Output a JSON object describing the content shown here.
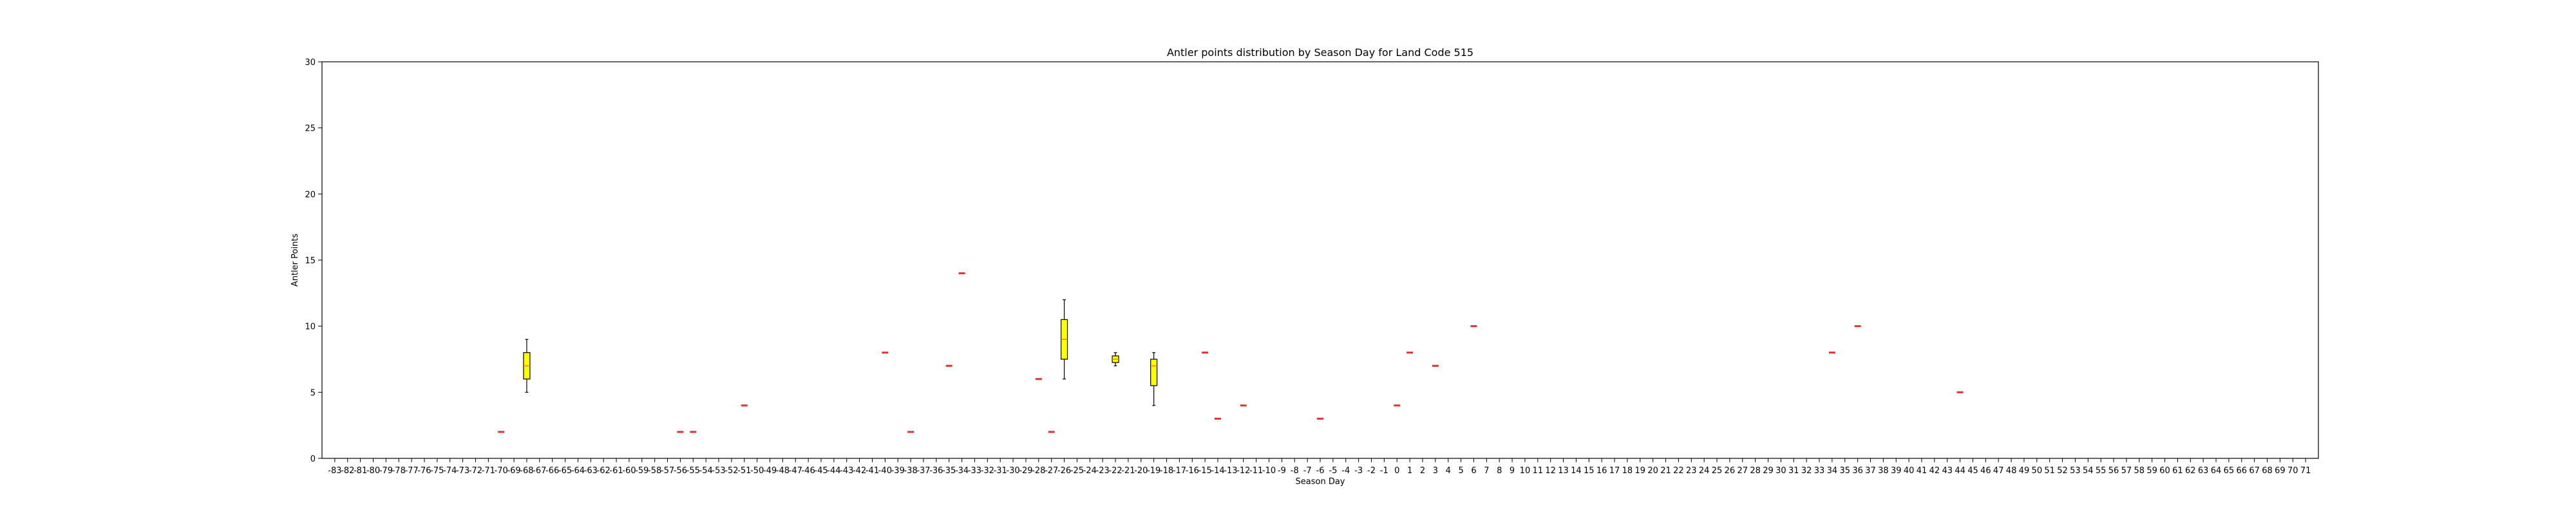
{
  "chart_data": {
    "type": "box",
    "title": "Antler points distribution by Season Day for Land Code 515",
    "xlabel": "Season Day",
    "ylabel": "Antler Points",
    "ylim": [
      0,
      30
    ],
    "yticks": [
      0,
      5,
      10,
      15,
      20,
      25,
      30
    ],
    "xmin": -83,
    "xmax": 71,
    "grid": false,
    "box_color": "#ffff00",
    "median_color": "#ff7f0e",
    "boxes": [
      {
        "x": -68,
        "whislo": 5,
        "q1": 6,
        "med": 7,
        "q3": 8,
        "whishi": 9
      },
      {
        "x": -26,
        "whislo": 6,
        "q1": 7.5,
        "med": 9,
        "q3": 10.5,
        "whishi": 12
      },
      {
        "x": -22,
        "whislo": 7,
        "q1": 7.25,
        "med": 7.5,
        "q3": 7.75,
        "whishi": 8
      },
      {
        "x": -19,
        "whislo": 4,
        "q1": 5.5,
        "med": 7,
        "q3": 7.5,
        "whishi": 8
      }
    ],
    "singles": [
      {
        "x": -70,
        "value": 2
      },
      {
        "x": -56,
        "value": 2
      },
      {
        "x": -55,
        "value": 2
      },
      {
        "x": -51,
        "value": 4
      },
      {
        "x": -40,
        "value": 8
      },
      {
        "x": -38,
        "value": 2
      },
      {
        "x": -35,
        "value": 7
      },
      {
        "x": -34,
        "value": 14
      },
      {
        "x": -28,
        "value": 6
      },
      {
        "x": -27,
        "value": 2
      },
      {
        "x": -15,
        "value": 8
      },
      {
        "x": -14,
        "value": 3
      },
      {
        "x": -12,
        "value": 4
      },
      {
        "x": -6,
        "value": 3
      },
      {
        "x": 0,
        "value": 4
      },
      {
        "x": 1,
        "value": 8
      },
      {
        "x": 3,
        "value": 7
      },
      {
        "x": 6,
        "value": 10
      },
      {
        "x": 34,
        "value": 8
      },
      {
        "x": 36,
        "value": 10
      },
      {
        "x": 44,
        "value": 5
      }
    ]
  }
}
